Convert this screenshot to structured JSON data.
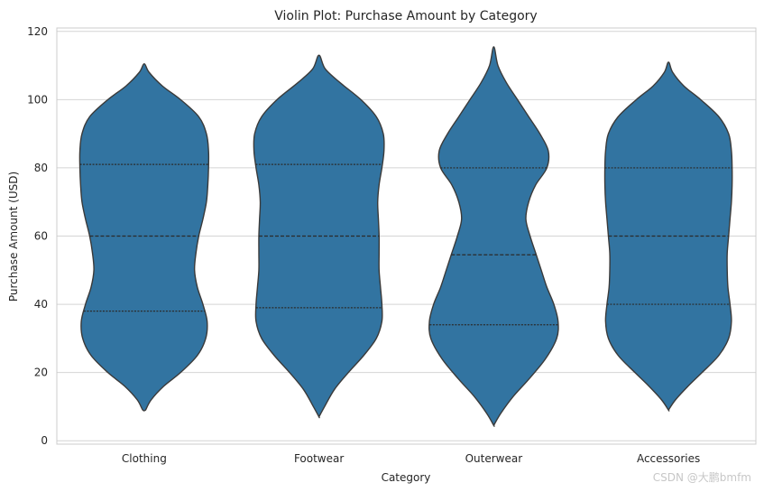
{
  "chart_data": {
    "type": "violin",
    "title": "Violin Plot: Purchase Amount by Category",
    "xlabel": "Category",
    "ylabel": "Purchase Amount (USD)",
    "ylim": [
      -1,
      121
    ],
    "yticks": [
      0,
      20,
      40,
      60,
      80,
      100,
      120
    ],
    "grid": "horizontal",
    "fill_color": "#3274a1",
    "edge_color": "#3a3a3a",
    "categories": [
      "Clothing",
      "Footwear",
      "Outerwear",
      "Accessories"
    ],
    "series": [
      {
        "category": "Clothing",
        "quartiles": [
          38,
          60,
          81
        ],
        "profile": [
          [
            9,
            0.02
          ],
          [
            12,
            0.1
          ],
          [
            16,
            0.28
          ],
          [
            20,
            0.52
          ],
          [
            25,
            0.76
          ],
          [
            30,
            0.88
          ],
          [
            35,
            0.9
          ],
          [
            40,
            0.84
          ],
          [
            45,
            0.76
          ],
          [
            50,
            0.72
          ],
          [
            55,
            0.74
          ],
          [
            60,
            0.78
          ],
          [
            65,
            0.84
          ],
          [
            70,
            0.89
          ],
          [
            75,
            0.91
          ],
          [
            80,
            0.92
          ],
          [
            85,
            0.92
          ],
          [
            90,
            0.89
          ],
          [
            95,
            0.78
          ],
          [
            100,
            0.52
          ],
          [
            104,
            0.26
          ],
          [
            108,
            0.07
          ],
          [
            110.5,
            0.0
          ]
        ]
      },
      {
        "category": "Footwear",
        "quartiles": [
          39,
          60,
          81
        ],
        "profile": [
          [
            7,
            0.0
          ],
          [
            10,
            0.08
          ],
          [
            15,
            0.22
          ],
          [
            20,
            0.42
          ],
          [
            25,
            0.64
          ],
          [
            30,
            0.82
          ],
          [
            35,
            0.9
          ],
          [
            40,
            0.9
          ],
          [
            45,
            0.88
          ],
          [
            50,
            0.86
          ],
          [
            55,
            0.86
          ],
          [
            60,
            0.86
          ],
          [
            65,
            0.85
          ],
          [
            70,
            0.84
          ],
          [
            75,
            0.86
          ],
          [
            80,
            0.9
          ],
          [
            85,
            0.93
          ],
          [
            90,
            0.92
          ],
          [
            95,
            0.82
          ],
          [
            100,
            0.6
          ],
          [
            105,
            0.3
          ],
          [
            109,
            0.09
          ],
          [
            113,
            0.0
          ]
        ]
      },
      {
        "category": "Outerwear",
        "quartiles": [
          34,
          54.5,
          80
        ],
        "profile": [
          [
            4.5,
            0.0
          ],
          [
            8,
            0.1
          ],
          [
            13,
            0.28
          ],
          [
            18,
            0.5
          ],
          [
            24,
            0.74
          ],
          [
            30,
            0.9
          ],
          [
            35,
            0.92
          ],
          [
            40,
            0.86
          ],
          [
            45,
            0.76
          ],
          [
            50,
            0.68
          ],
          [
            55,
            0.6
          ],
          [
            60,
            0.52
          ],
          [
            65,
            0.46
          ],
          [
            70,
            0.5
          ],
          [
            75,
            0.6
          ],
          [
            80,
            0.76
          ],
          [
            85,
            0.78
          ],
          [
            90,
            0.66
          ],
          [
            95,
            0.5
          ],
          [
            100,
            0.34
          ],
          [
            105,
            0.18
          ],
          [
            110,
            0.06
          ],
          [
            115.5,
            0.0
          ]
        ]
      },
      {
        "category": "Accessories",
        "quartiles": [
          40,
          60,
          80
        ],
        "profile": [
          [
            9,
            0.0
          ],
          [
            12,
            0.1
          ],
          [
            16,
            0.28
          ],
          [
            20,
            0.48
          ],
          [
            25,
            0.72
          ],
          [
            30,
            0.86
          ],
          [
            35,
            0.9
          ],
          [
            40,
            0.88
          ],
          [
            45,
            0.85
          ],
          [
            50,
            0.84
          ],
          [
            55,
            0.84
          ],
          [
            60,
            0.86
          ],
          [
            65,
            0.88
          ],
          [
            70,
            0.9
          ],
          [
            75,
            0.91
          ],
          [
            80,
            0.91
          ],
          [
            85,
            0.9
          ],
          [
            90,
            0.86
          ],
          [
            95,
            0.72
          ],
          [
            100,
            0.46
          ],
          [
            104,
            0.22
          ],
          [
            108,
            0.06
          ],
          [
            111,
            0.0
          ]
        ]
      }
    ]
  },
  "watermark": "CSDN @大鹏bmfm"
}
